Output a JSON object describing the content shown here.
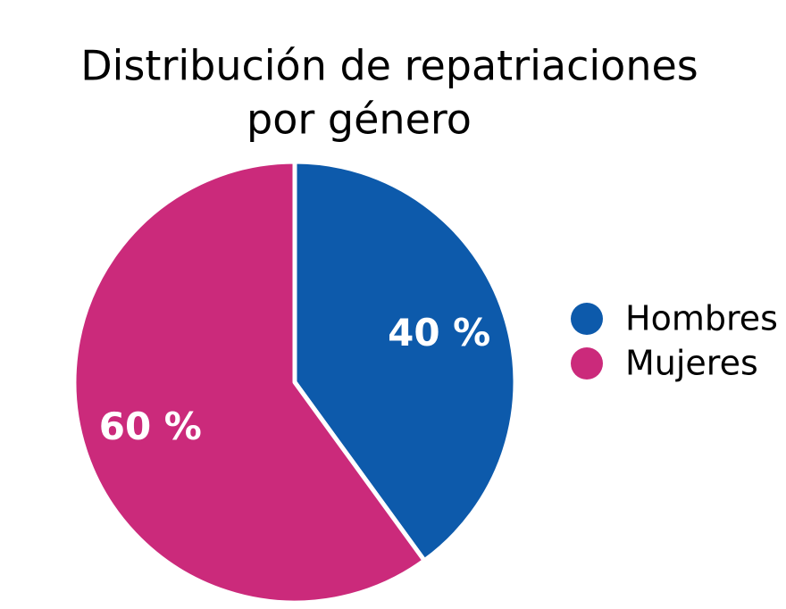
{
  "chart_data": {
    "type": "pie",
    "title": [
      "Distribución de repatriaciones",
      "por género"
    ],
    "categories": [
      "Hombres",
      "Mujeres"
    ],
    "values": [
      40,
      60
    ],
    "value_labels": [
      "40 %",
      "60 %"
    ],
    "colors": [
      "#0d5aab",
      "#cb2a7b"
    ],
    "legend": "right"
  }
}
